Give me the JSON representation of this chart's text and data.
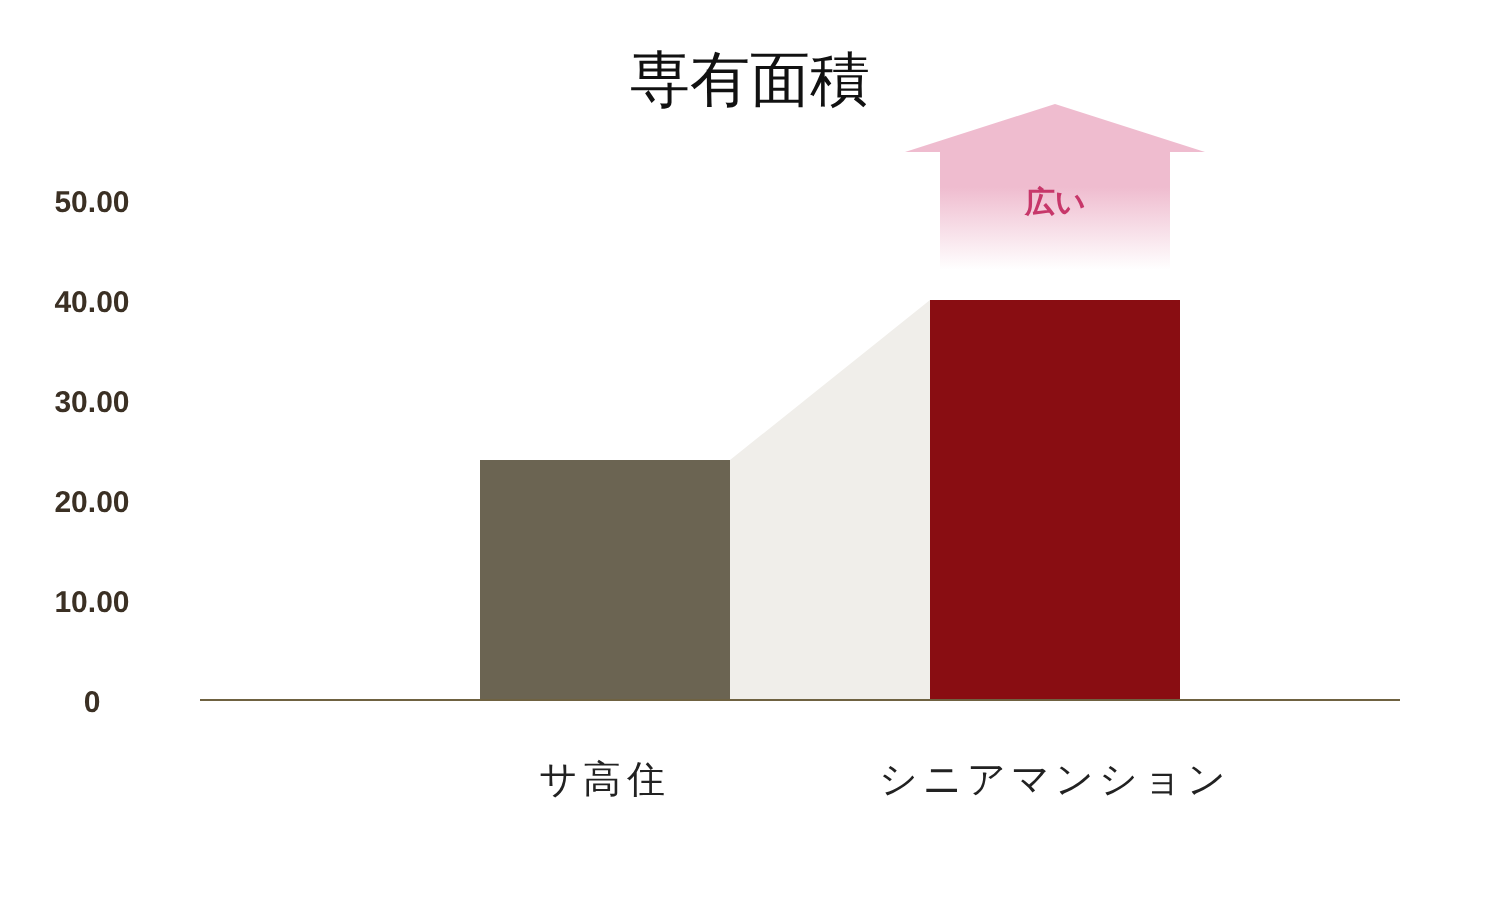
{
  "chart_data": {
    "type": "bar",
    "title": "専有面積",
    "categories": [
      "サ高住",
      "シニアマンション"
    ],
    "values": [
      24,
      40
    ],
    "colors": [
      "#6b6452",
      "#890d12"
    ],
    "ylim": [
      0,
      50
    ],
    "yticks": [
      0,
      {
        "value": 10,
        "label": "10.00"
      },
      {
        "value": 20,
        "label": "20.00"
      },
      {
        "value": 30,
        "label": "30.00"
      },
      {
        "value": 40,
        "label": "40.00"
      },
      {
        "value": 50,
        "label": "50.00"
      }
    ],
    "annotations": [
      "広い"
    ]
  }
}
